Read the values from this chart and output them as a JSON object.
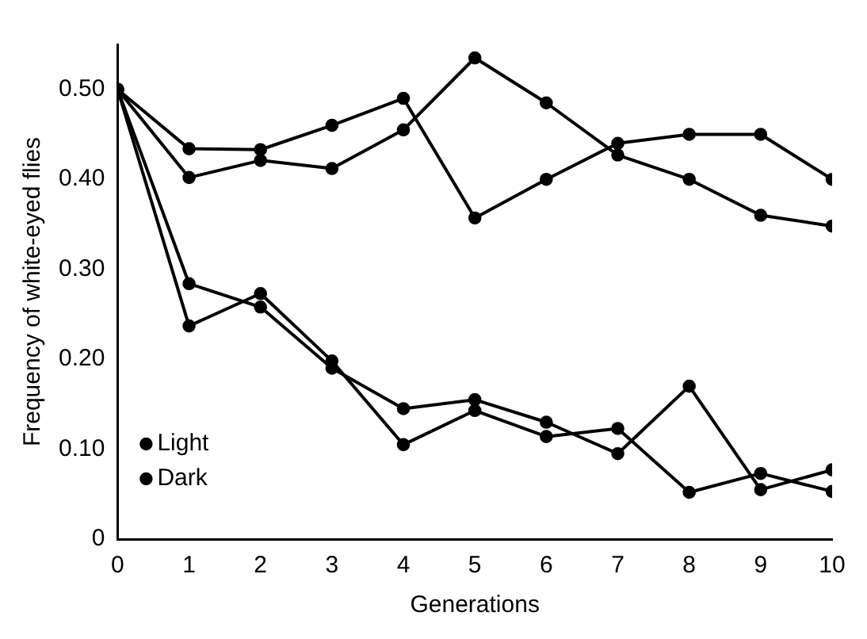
{
  "chart_data": {
    "type": "line",
    "xlabel": "Generations",
    "ylabel": "Frequency of white-eyed flies",
    "x": [
      0,
      1,
      2,
      3,
      4,
      5,
      6,
      7,
      8,
      9,
      10
    ],
    "series": [
      {
        "name": "Light",
        "color": "#000000",
        "values": [
          0.5,
          0.284,
          0.258,
          0.19,
          0.145,
          0.155,
          0.13,
          0.095,
          0.17,
          0.055,
          0.077
        ]
      },
      {
        "color": "#000000",
        "values": [
          0.5,
          0.237,
          0.273,
          0.198,
          0.105,
          0.143,
          0.114,
          0.123,
          0.052,
          0.073,
          0.053
        ]
      },
      {
        "name": "Dark",
        "color": "#000000",
        "values": [
          0.5,
          0.402,
          0.421,
          0.412,
          0.455,
          0.535,
          0.485,
          0.427,
          0.4,
          0.36,
          0.348
        ]
      },
      {
        "color": "#000000",
        "values": [
          0.5,
          0.434,
          0.433,
          0.46,
          0.49,
          0.357,
          0.4,
          0.44,
          0.45,
          0.45,
          0.4
        ]
      }
    ],
    "xlim": [
      0,
      10
    ],
    "xticks": [
      0,
      1,
      2,
      3,
      4,
      5,
      6,
      7,
      8,
      9,
      10
    ],
    "ylim": [
      0,
      0.55
    ],
    "yticks": [
      {
        "value": 0,
        "label": "0"
      },
      {
        "value": 0.1,
        "label": "0.10"
      },
      {
        "value": 0.2,
        "label": "0.20"
      },
      {
        "value": 0.3,
        "label": "0.30"
      },
      {
        "value": 0.4,
        "label": "0.40"
      },
      {
        "value": 0.5,
        "label": "0.50"
      }
    ],
    "grid": false,
    "legend": "bottom left",
    "marker": "circle",
    "line_style": "solid"
  }
}
